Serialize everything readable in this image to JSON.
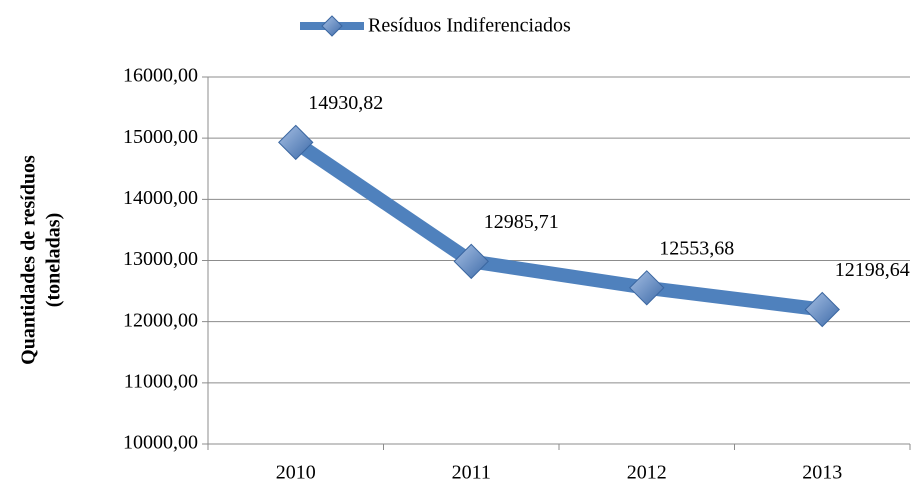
{
  "chart_data": {
    "type": "line",
    "ylabel": [
      "Quantidades de resíduos",
      "(toneladas)"
    ],
    "categories": [
      "2010",
      "2011",
      "2012",
      "2013"
    ],
    "series": [
      {
        "name": "Resíduos Indiferenciados",
        "color": "#4f81bd",
        "values": [
          14930.82,
          12985.71,
          12553.68,
          12198.64
        ],
        "value_labels": [
          "14930,82",
          "12985,71",
          "12553,68",
          "12198,64"
        ]
      }
    ],
    "ylim": [
      10000,
      16000
    ],
    "yticks": [
      {
        "value": 10000,
        "label": "10000,00"
      },
      {
        "value": 11000,
        "label": "11000,00"
      },
      {
        "value": 12000,
        "label": "12000,00"
      },
      {
        "value": 13000,
        "label": "13000,00"
      },
      {
        "value": 14000,
        "label": "14000,00"
      },
      {
        "value": 15000,
        "label": "15000,00"
      },
      {
        "value": 16000,
        "label": "16000,00"
      }
    ],
    "grid": true,
    "legend": "top"
  }
}
